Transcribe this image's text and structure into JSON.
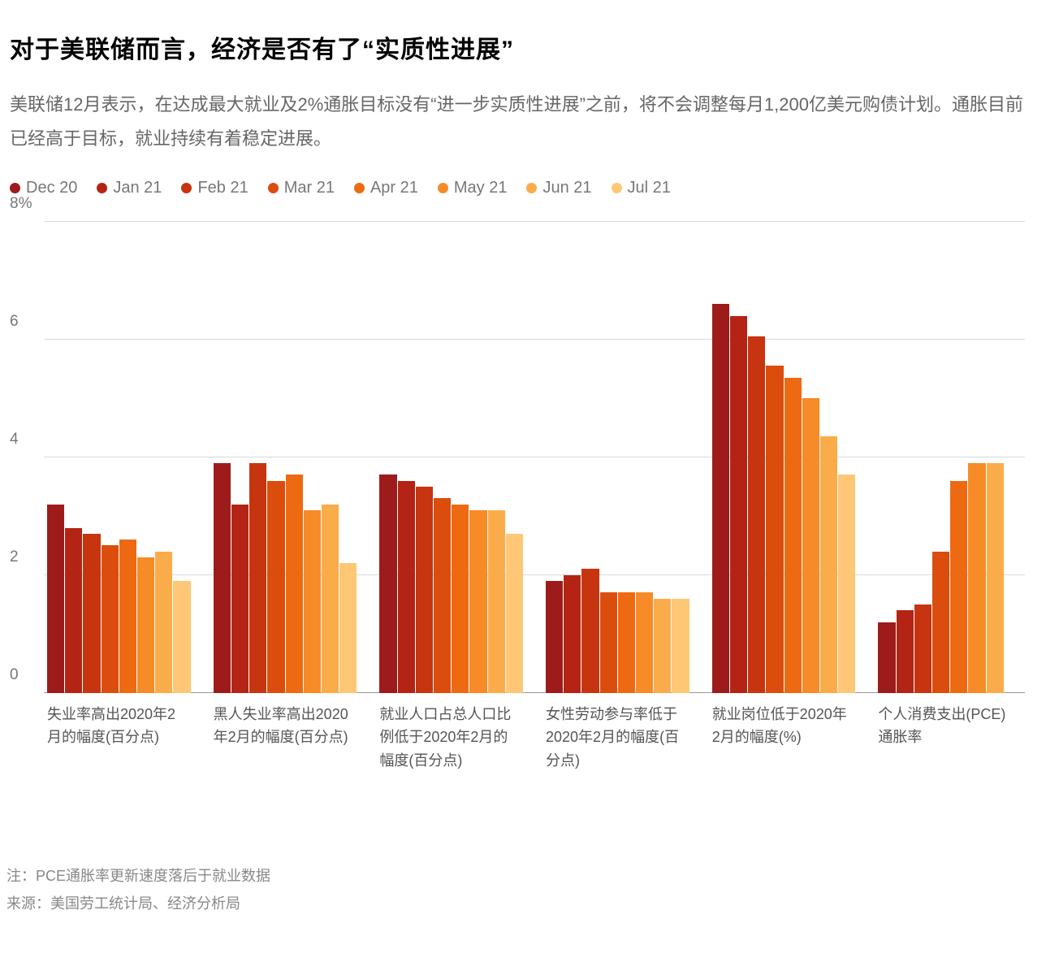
{
  "title": "对于美联储而言，经济是否有了“实质性进展”",
  "subtitle": "美联储12月表示，在达成最大就业及2%通胀目标没有“进一步实质性进展”之前，将不会调整每月1,200亿美元购债计划。通胀目前已经高于目标，就业持续有着稳定进展。",
  "chart": {
    "type": "grouped-bar",
    "y_axis": {
      "min": 0,
      "max": 8,
      "ticks": [
        0,
        2,
        4,
        6,
        8
      ],
      "tick_labels": [
        "0",
        "2",
        "4",
        "6",
        "8%"
      ]
    },
    "grid_color": "#d9d9d9",
    "baseline_color": "#999999",
    "background_color": "#ffffff",
    "series": [
      {
        "label": "Dec 20",
        "color": "#9e1b1b"
      },
      {
        "label": "Jan 21",
        "color": "#b32414"
      },
      {
        "label": "Feb 21",
        "color": "#c6350f"
      },
      {
        "label": "Mar 21",
        "color": "#db4d0d"
      },
      {
        "label": "Apr 21",
        "color": "#ee6a12"
      },
      {
        "label": "May 21",
        "color": "#f68b28"
      },
      {
        "label": "Jun 21",
        "color": "#fbac4a"
      },
      {
        "label": "Jul 21",
        "color": "#fdc776"
      }
    ],
    "categories": [
      {
        "label": "失业率高出2020年2月的幅度(百分点)",
        "values": [
          3.2,
          2.8,
          2.7,
          2.5,
          2.6,
          2.3,
          2.4,
          1.9
        ]
      },
      {
        "label": "黑人失业率高出2020年2月的幅度(百分点)",
        "values": [
          3.9,
          3.2,
          3.9,
          3.6,
          3.7,
          3.1,
          3.2,
          2.2
        ]
      },
      {
        "label": "就业人口占总人口比例低于2020年2月的幅度(百分点)",
        "values": [
          3.7,
          3.6,
          3.5,
          3.3,
          3.2,
          3.1,
          3.1,
          2.7
        ]
      },
      {
        "label": "女性劳动参与率低于2020年2月的幅度(百分点)",
        "values": [
          1.9,
          2.0,
          2.1,
          1.7,
          1.7,
          1.7,
          1.6,
          1.6
        ]
      },
      {
        "label": "就业岗位低于2020年2月的幅度(%)",
        "values": [
          6.6,
          6.4,
          6.05,
          5.55,
          5.35,
          5.0,
          4.35,
          3.7
        ]
      },
      {
        "label": "个人消费支出(PCE)通胀率",
        "values": [
          1.2,
          1.4,
          1.5,
          2.4,
          3.6,
          3.9,
          3.9,
          null
        ]
      }
    ]
  },
  "footer_note": "注：PCE通胀率更新速度落后于就业数据",
  "footer_source": "来源：美国劳工统计局、经济分析局"
}
